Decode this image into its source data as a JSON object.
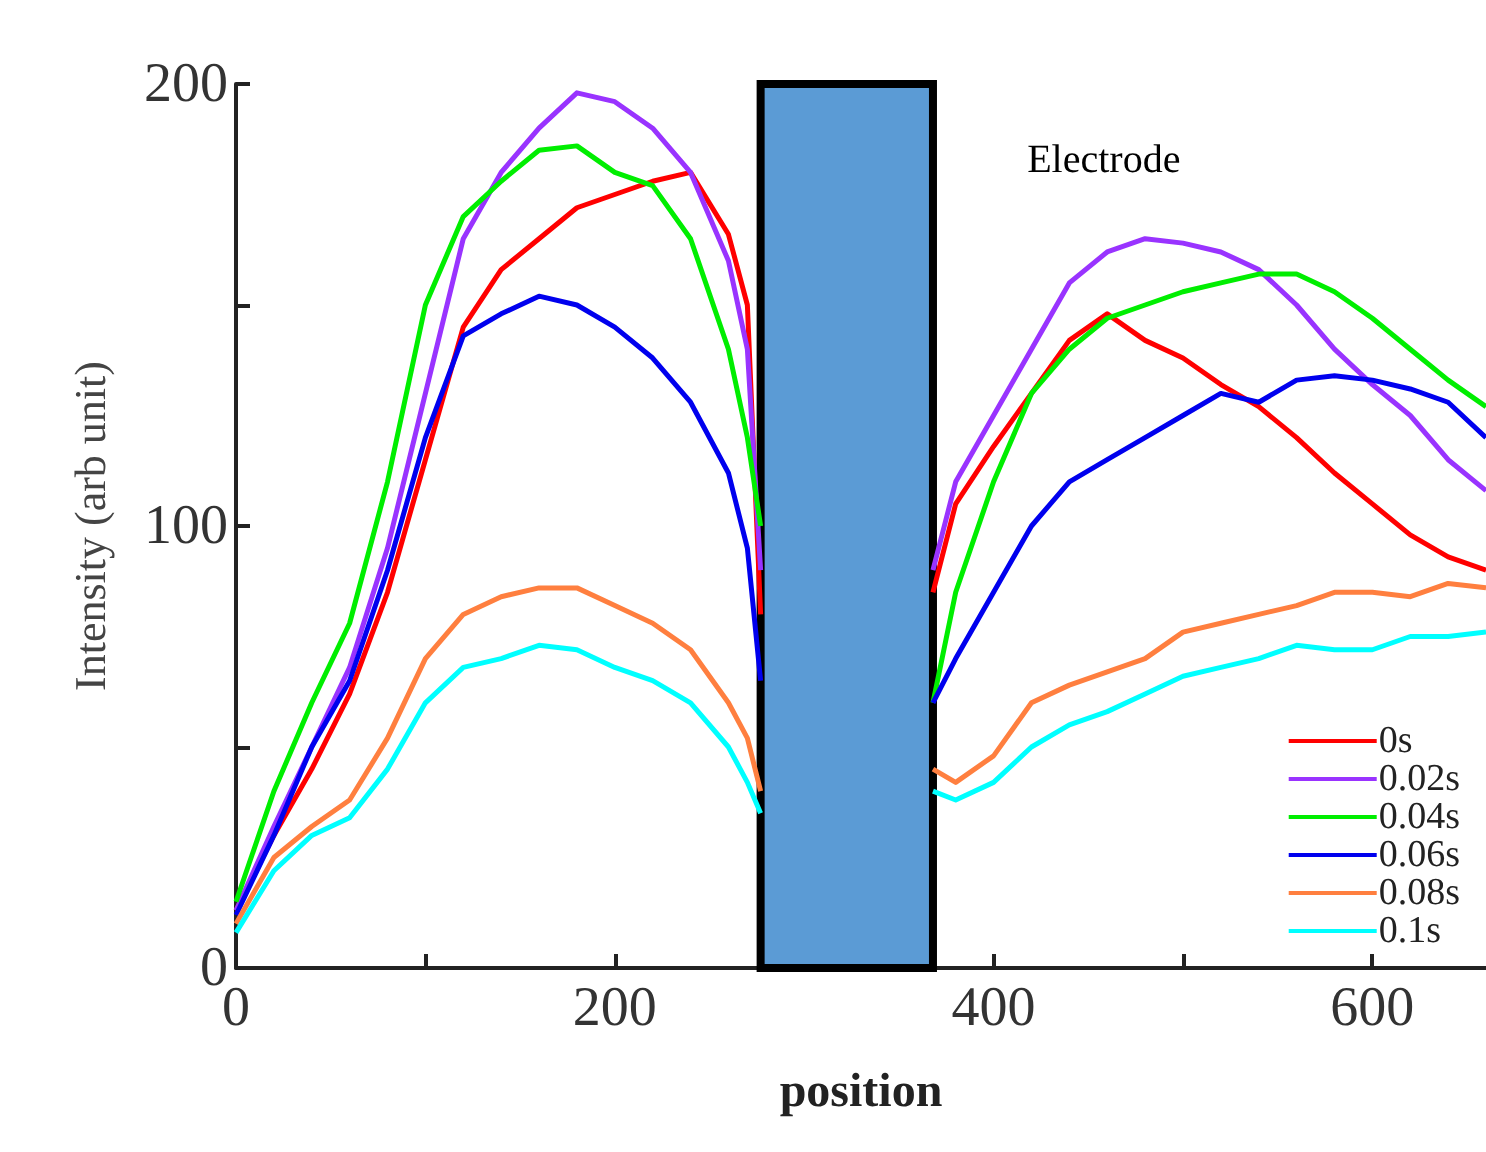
{
  "chart_data": {
    "type": "line",
    "xlabel": "position",
    "ylabel": "Intensity (arb unit)",
    "x": [
      0,
      20,
      40,
      60,
      80,
      100,
      120,
      140,
      160,
      180,
      200,
      220,
      240,
      260,
      270,
      277,
      320,
      368,
      380,
      400,
      420,
      440,
      460,
      480,
      500,
      520,
      540,
      560,
      580,
      600,
      620,
      640,
      660
    ],
    "series": [
      {
        "name": "0s",
        "color": "#ff0000",
        "values": [
          13,
          30,
          45,
          62,
          85,
          115,
          145,
          158,
          165,
          172,
          175,
          178,
          180,
          166,
          150,
          80,
          null,
          85,
          105,
          118,
          130,
          142,
          148,
          142,
          138,
          132,
          127,
          120,
          112,
          105,
          98,
          93,
          90
        ]
      },
      {
        "name": "0.02s",
        "color": "#9933ff",
        "values": [
          13,
          32,
          50,
          68,
          95,
          130,
          165,
          180,
          190,
          198,
          196,
          190,
          180,
          160,
          140,
          90,
          null,
          90,
          110,
          125,
          140,
          155,
          162,
          165,
          164,
          162,
          158,
          150,
          140,
          132,
          125,
          115,
          108
        ]
      },
      {
        "name": "0.04s",
        "color": "#00ee00",
        "values": [
          15,
          40,
          60,
          78,
          110,
          150,
          170,
          178,
          185,
          186,
          180,
          177,
          165,
          140,
          120,
          100,
          null,
          60,
          85,
          110,
          130,
          140,
          147,
          150,
          153,
          155,
          157,
          157,
          153,
          147,
          140,
          133,
          127
        ]
      },
      {
        "name": "0.06s",
        "color": "#0000ee",
        "values": [
          12,
          30,
          50,
          65,
          90,
          120,
          143,
          148,
          152,
          150,
          145,
          138,
          128,
          112,
          95,
          65,
          null,
          60,
          70,
          85,
          100,
          110,
          115,
          120,
          125,
          130,
          128,
          133,
          134,
          133,
          131,
          128,
          120
        ]
      },
      {
        "name": "0.08s",
        "color": "#ff7f3f",
        "values": [
          10,
          25,
          32,
          38,
          52,
          70,
          80,
          84,
          86,
          86,
          82,
          78,
          72,
          60,
          52,
          40,
          null,
          45,
          42,
          48,
          60,
          64,
          67,
          70,
          76,
          78,
          80,
          82,
          85,
          85,
          84,
          87,
          86
        ]
      },
      {
        "name": "0.1s",
        "color": "#00ffff",
        "values": [
          8,
          22,
          30,
          34,
          45,
          60,
          68,
          70,
          73,
          72,
          68,
          65,
          60,
          50,
          42,
          35,
          null,
          40,
          38,
          42,
          50,
          55,
          58,
          62,
          66,
          68,
          70,
          73,
          72,
          72,
          75,
          75,
          76
        ]
      }
    ],
    "xlim": [
      0,
      660
    ],
    "xticks": [
      0,
      {
        "value": 100,
        "label": null
      },
      200,
      {
        "value": 300,
        "label": null
      },
      400,
      {
        "value": 500,
        "label": null
      },
      600
    ],
    "ylim": [
      0,
      200
    ],
    "yticks": [
      0,
      {
        "value": 50,
        "label": null
      },
      100,
      {
        "value": 150,
        "label": null
      },
      200
    ],
    "bands": [
      {
        "axis": "x",
        "from": 277,
        "to": 368,
        "label": "Electrode",
        "color": "#5b9bd5"
      }
    ],
    "grid": false,
    "legend": "bottom right"
  }
}
